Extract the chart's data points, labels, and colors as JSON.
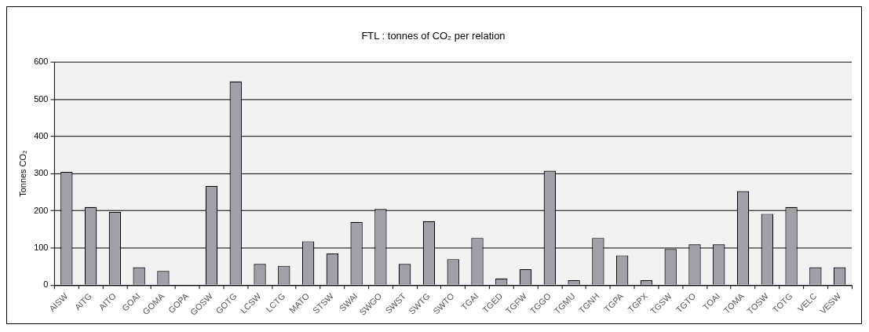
{
  "chart_data": {
    "type": "bar",
    "title": "FTL : tonnes of CO₂ per relation",
    "ylabel": "Tonnes CO₂",
    "categories": [
      "AISW",
      "AITG",
      "AITO",
      "GOAI",
      "GOMA",
      "GOPA",
      "GOSW",
      "GOTG",
      "LCSW",
      "LCTG",
      "MATO",
      "STSW",
      "SWAI",
      "SWGO",
      "SWST",
      "SWTG",
      "SWTO",
      "TGAI",
      "TGED",
      "TGFW",
      "TGGO",
      "TGMU",
      "TGNH",
      "TGPA",
      "TGPX",
      "TGSW",
      "TGTO",
      "TOAI",
      "TOMA",
      "TOSW",
      "TOTG",
      "VELC",
      "VESW"
    ],
    "values": [
      305,
      210,
      197,
      48,
      38,
      0,
      267,
      548,
      57,
      52,
      118,
      85,
      170,
      205,
      57,
      172,
      70,
      127,
      18,
      43,
      308,
      13,
      127,
      80,
      13,
      97,
      110,
      110,
      253,
      192,
      210,
      48,
      48
    ],
    "color": "#a0a0a8",
    "ylim": [
      0,
      600
    ],
    "yticks": [
      0,
      100,
      200,
      300,
      400,
      500,
      600
    ],
    "grid": "y",
    "legend": false
  }
}
